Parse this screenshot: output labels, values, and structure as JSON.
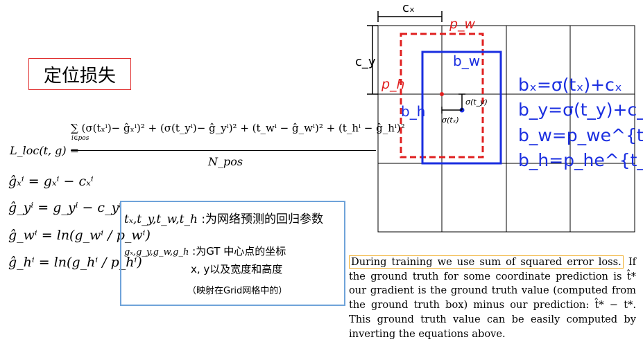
{
  "title": "定位损失",
  "loss": {
    "lhs": "L_loc(t, g) =",
    "numerator": "∑ (σ(tₓⁱ)− ĝₓⁱ)² + (σ(t_yⁱ)− ĝ_yⁱ)² + (t_wⁱ − ĝ_wⁱ)² + (t_hⁱ − ĝ_hⁱ)²",
    "sum_index": "i∈pos",
    "denominator": "N_pos"
  },
  "equations": [
    "ĝₓⁱ = gₓⁱ − cₓⁱ",
    "ĝ_yⁱ = g_yⁱ − c_yⁱ",
    "ĝ_wⁱ = ln(g_wⁱ / p_wⁱ)",
    "ĝ_hⁱ = ln(g_hⁱ / p_hⁱ)"
  ],
  "info": {
    "line1_symbols": "tₓ,t_y,t_w,t_h",
    "line1_text": ":为网络预测的回归参数",
    "line2_symbols": "gₓ,g_y,g_w,g_h",
    "line2_text": ":为GT 中心点的坐标",
    "line3_text": "x, y以及宽度和高度",
    "line4_text": "（映射在Grid网格中的）"
  },
  "diagram": {
    "cx_label": "cₓ",
    "cy_label": "c_y",
    "pw_label": "p_w",
    "ph_label": "p_h",
    "bw_label": "b_w",
    "bh_label": "b_h",
    "sigma_ty_label": "σ(t_y)",
    "sigma_tx_label": "σ(tₓ)",
    "colors": {
      "prior": "#e02020",
      "box": "#1a2ee0",
      "grid": "#000000"
    }
  },
  "formulas": [
    "bₓ=σ(tₓ)+cₓ",
    "b_y=σ(t_y)+c_y",
    "b_w=p_we^{t_w}",
    "b_h=p_he^{t_h}"
  ],
  "paragraph": {
    "highlight": "During training we use sum of squared error loss.",
    "rest": " If the ground truth for some coordinate prediction is t̂* our gradient is the ground truth value (computed from the ground truth box) minus our prediction: t̂* − t*. This ground truth value can be easily computed by inverting the equations above."
  }
}
